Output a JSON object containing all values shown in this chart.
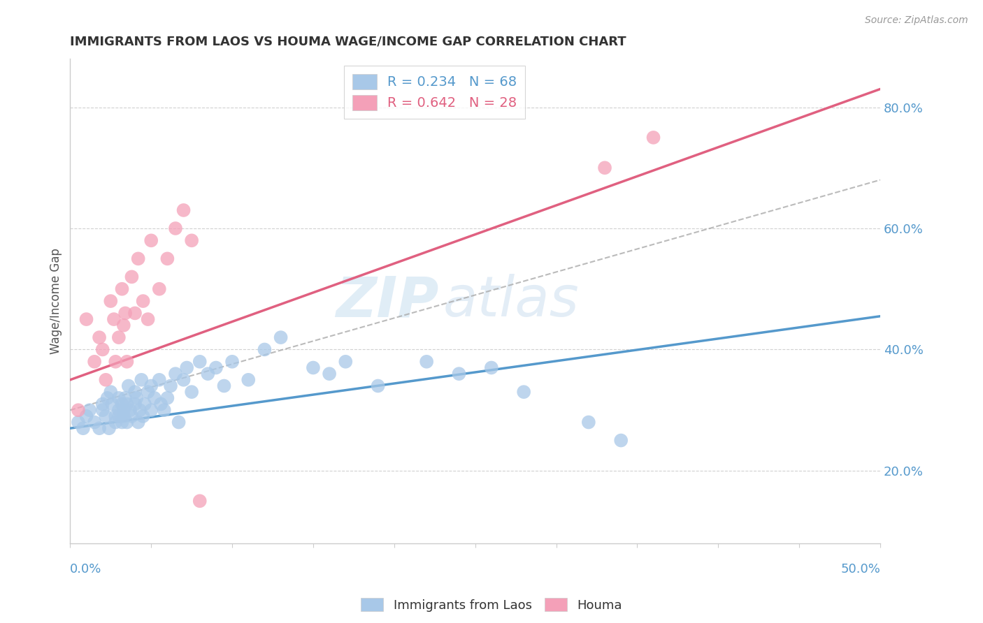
{
  "title": "IMMIGRANTS FROM LAOS VS HOUMA WAGE/INCOME GAP CORRELATION CHART",
  "source": "Source: ZipAtlas.com",
  "ylabel": "Wage/Income Gap",
  "yticks_labels": [
    "20.0%",
    "40.0%",
    "60.0%",
    "80.0%"
  ],
  "ytick_vals": [
    0.2,
    0.4,
    0.6,
    0.8
  ],
  "xlim": [
    0.0,
    0.5
  ],
  "ylim": [
    0.08,
    0.88
  ],
  "legend_line1": "R = 0.234   N = 68",
  "legend_line2": "R = 0.642   N = 28",
  "blue_color": "#a8c8e8",
  "pink_color": "#f4a0b8",
  "blue_line_color": "#5599cc",
  "pink_line_color": "#e06080",
  "gray_line_color": "#aaaaaa",
  "watermark_zip": "ZIP",
  "watermark_atlas": "atlas",
  "blue_scatter_x": [
    0.005,
    0.008,
    0.01,
    0.012,
    0.015,
    0.018,
    0.02,
    0.02,
    0.022,
    0.023,
    0.024,
    0.025,
    0.026,
    0.028,
    0.028,
    0.03,
    0.03,
    0.03,
    0.032,
    0.032,
    0.033,
    0.033,
    0.034,
    0.035,
    0.035,
    0.036,
    0.037,
    0.038,
    0.04,
    0.04,
    0.041,
    0.042,
    0.043,
    0.044,
    0.045,
    0.046,
    0.048,
    0.05,
    0.05,
    0.052,
    0.055,
    0.056,
    0.058,
    0.06,
    0.062,
    0.065,
    0.067,
    0.07,
    0.072,
    0.075,
    0.08,
    0.085,
    0.09,
    0.095,
    0.1,
    0.11,
    0.12,
    0.13,
    0.15,
    0.16,
    0.17,
    0.19,
    0.22,
    0.24,
    0.26,
    0.28,
    0.32,
    0.34
  ],
  "blue_scatter_y": [
    0.28,
    0.27,
    0.29,
    0.3,
    0.28,
    0.27,
    0.3,
    0.31,
    0.29,
    0.32,
    0.27,
    0.33,
    0.31,
    0.29,
    0.28,
    0.32,
    0.3,
    0.29,
    0.28,
    0.31,
    0.3,
    0.29,
    0.32,
    0.28,
    0.31,
    0.34,
    0.3,
    0.29,
    0.33,
    0.31,
    0.32,
    0.28,
    0.3,
    0.35,
    0.29,
    0.31,
    0.33,
    0.34,
    0.3,
    0.32,
    0.35,
    0.31,
    0.3,
    0.32,
    0.34,
    0.36,
    0.28,
    0.35,
    0.37,
    0.33,
    0.38,
    0.36,
    0.37,
    0.34,
    0.38,
    0.35,
    0.4,
    0.42,
    0.37,
    0.36,
    0.38,
    0.34,
    0.38,
    0.36,
    0.37,
    0.33,
    0.28,
    0.25
  ],
  "pink_scatter_x": [
    0.005,
    0.01,
    0.015,
    0.018,
    0.02,
    0.022,
    0.025,
    0.027,
    0.028,
    0.03,
    0.032,
    0.033,
    0.034,
    0.035,
    0.038,
    0.04,
    0.042,
    0.045,
    0.048,
    0.05,
    0.055,
    0.06,
    0.065,
    0.07,
    0.075,
    0.08,
    0.33,
    0.36
  ],
  "pink_scatter_y": [
    0.3,
    0.45,
    0.38,
    0.42,
    0.4,
    0.35,
    0.48,
    0.45,
    0.38,
    0.42,
    0.5,
    0.44,
    0.46,
    0.38,
    0.52,
    0.46,
    0.55,
    0.48,
    0.45,
    0.58,
    0.5,
    0.55,
    0.6,
    0.63,
    0.58,
    0.15,
    0.7,
    0.75
  ],
  "blue_line_x": [
    0.0,
    0.5
  ],
  "blue_line_y": [
    0.27,
    0.455
  ],
  "pink_line_x": [
    0.0,
    0.5
  ],
  "pink_line_y": [
    0.35,
    0.83
  ],
  "gray_line_x": [
    0.0,
    0.5
  ],
  "gray_line_y": [
    0.3,
    0.68
  ]
}
